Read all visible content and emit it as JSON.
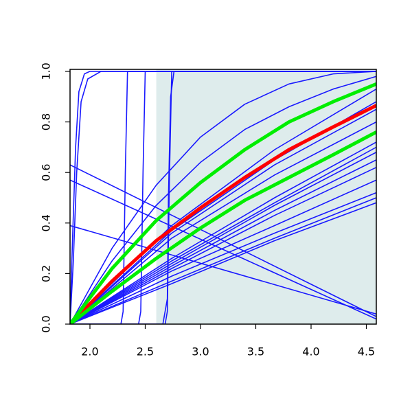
{
  "chart_data": {
    "type": "line",
    "xlim": [
      1.82,
      4.59
    ],
    "ylim": [
      0,
      1.008
    ],
    "xticks": [
      {
        "value": 2,
        "label": "2.0"
      },
      2.5,
      {
        "value": 3,
        "label": "3.0"
      },
      3.5,
      {
        "value": 4,
        "label": "4.0"
      },
      4.5
    ],
    "yticks": [
      {
        "value": 0,
        "label": "0.0"
      },
      0.2,
      0.4,
      0.6,
      0.8,
      {
        "value": 1,
        "label": "1.0"
      }
    ],
    "shade": {
      "from": 2.6,
      "color": "#deecec"
    },
    "series": [
      {
        "color": "#1a1aff",
        "width": 1.6,
        "x": [
          1.82,
          1.84,
          1.87,
          1.9,
          1.95,
          2.0,
          4.59
        ],
        "values": [
          0,
          0.3,
          0.7,
          0.92,
          0.99,
          1,
          1
        ]
      },
      {
        "color": "#1a1aff",
        "width": 1.6,
        "x": [
          1.82,
          1.85,
          1.88,
          1.92,
          1.98,
          2.1,
          4.59
        ],
        "values": [
          0,
          0.25,
          0.6,
          0.88,
          0.97,
          1,
          1
        ]
      },
      {
        "color": "#1a1aff",
        "width": 1.6,
        "x": [
          1.82,
          2.28,
          2.3,
          2.32,
          2.34,
          4.59
        ],
        "values": [
          0,
          0,
          0.05,
          0.6,
          1,
          1
        ]
      },
      {
        "color": "#1a1aff",
        "width": 1.6,
        "x": [
          1.82,
          2.44,
          2.46,
          2.48,
          2.5,
          4.59
        ],
        "values": [
          0,
          0,
          0.05,
          0.6,
          1,
          1
        ]
      },
      {
        "color": "#1a1aff",
        "width": 1.6,
        "x": [
          1.82,
          2.68,
          2.7,
          2.72,
          2.74,
          4.59
        ],
        "values": [
          0,
          0,
          0.05,
          0.6,
          1,
          1
        ]
      },
      {
        "color": "#1a1aff",
        "width": 1.6,
        "x": [
          1.82,
          2.66,
          2.7,
          2.71,
          2.73,
          2.76,
          4.59
        ],
        "values": [
          0,
          0,
          0.1,
          0.5,
          0.9,
          1,
          1
        ]
      },
      {
        "color": "#1a1aff",
        "width": 1.6,
        "x": [
          1.82,
          4.59
        ],
        "values": [
          0.63,
          0.03
        ]
      },
      {
        "color": "#1a1aff",
        "width": 1.6,
        "x": [
          1.82,
          4.59
        ],
        "values": [
          0.57,
          0.02
        ]
      },
      {
        "color": "#1a1aff",
        "width": 1.6,
        "x": [
          1.82,
          4.59
        ],
        "values": [
          0.39,
          0.04
        ]
      },
      {
        "color": "#1a1aff",
        "width": 1.6,
        "x": [
          1.82,
          2.2,
          2.6,
          3.0,
          3.4,
          3.8,
          4.2,
          4.59
        ],
        "values": [
          0,
          0.25,
          0.47,
          0.64,
          0.77,
          0.86,
          0.93,
          0.98
        ]
      },
      {
        "color": "#1a1aff",
        "width": 1.6,
        "x": [
          1.82,
          2.2,
          2.6,
          3.0,
          3.4,
          3.8,
          4.2,
          4.59
        ],
        "values": [
          0,
          0.3,
          0.55,
          0.74,
          0.87,
          0.95,
          0.99,
          1
        ]
      },
      {
        "color": "#1a1aff",
        "width": 1.6,
        "x": [
          1.82,
          2.74,
          3.67,
          4.59
        ],
        "values": [
          0,
          0.39,
          0.69,
          0.93
        ]
      },
      {
        "color": "#1a1aff",
        "width": 1.6,
        "x": [
          1.82,
          2.74,
          3.67,
          4.59
        ],
        "values": [
          0,
          0.37,
          0.65,
          0.88
        ]
      },
      {
        "color": "#1a1aff",
        "width": 1.6,
        "x": [
          1.82,
          2.74,
          3.67,
          4.59
        ],
        "values": [
          0,
          0.36,
          0.63,
          0.85
        ]
      },
      {
        "color": "#1a1aff",
        "width": 1.6,
        "x": [
          1.82,
          2.74,
          3.67,
          4.59
        ],
        "values": [
          0,
          0.34,
          0.59,
          0.8
        ]
      },
      {
        "color": "#1a1aff",
        "width": 1.6,
        "x": [
          1.82,
          2.74,
          3.67,
          4.59
        ],
        "values": [
          0,
          0.26,
          0.5,
          0.72
        ]
      },
      {
        "color": "#1a1aff",
        "width": 1.6,
        "x": [
          1.82,
          2.74,
          3.67,
          4.59
        ],
        "values": [
          0,
          0.25,
          0.48,
          0.7
        ]
      },
      {
        "color": "#1a1aff",
        "width": 1.6,
        "x": [
          1.82,
          2.74,
          3.67,
          4.59
        ],
        "values": [
          0,
          0.24,
          0.47,
          0.68
        ]
      },
      {
        "color": "#1a1aff",
        "width": 1.6,
        "x": [
          1.82,
          2.74,
          3.67,
          4.59
        ],
        "values": [
          0,
          0.23,
          0.45,
          0.65
        ]
      },
      {
        "color": "#1a1aff",
        "width": 1.6,
        "x": [
          1.82,
          2.74,
          3.67,
          4.59
        ],
        "values": [
          0,
          0.22,
          0.43,
          0.62
        ]
      },
      {
        "color": "#1a1aff",
        "width": 1.6,
        "x": [
          1.82,
          2.74,
          3.67,
          4.59
        ],
        "values": [
          0,
          0.21,
          0.39,
          0.57
        ]
      },
      {
        "color": "#1a1aff",
        "width": 1.6,
        "x": [
          1.82,
          2.74,
          3.67,
          4.59
        ],
        "values": [
          0,
          0.19,
          0.36,
          0.52
        ]
      },
      {
        "color": "#1a1aff",
        "width": 1.6,
        "x": [
          1.82,
          2.74,
          3.67,
          4.59
        ],
        "values": [
          0,
          0.17,
          0.34,
          0.5
        ]
      },
      {
        "color": "#1a1aff",
        "width": 1.6,
        "x": [
          1.82,
          2.74,
          3.67,
          4.59
        ],
        "values": [
          0,
          0.16,
          0.33,
          0.48
        ]
      },
      {
        "color": "#ff0000",
        "width": 5,
        "x": [
          1.82,
          2.2,
          2.6,
          3.0,
          3.4,
          3.8,
          4.2,
          4.59
        ],
        "values": [
          0,
          0.17,
          0.33,
          0.46,
          0.58,
          0.69,
          0.78,
          0.865
        ]
      },
      {
        "color": "#00ee00",
        "width": 5,
        "x": [
          1.82,
          2.2,
          2.6,
          3.0,
          3.4,
          3.8,
          4.2,
          4.59
        ],
        "values": [
          0,
          0.22,
          0.41,
          0.56,
          0.69,
          0.8,
          0.88,
          0.95
        ]
      },
      {
        "color": "#00ee00",
        "width": 5,
        "x": [
          1.82,
          2.2,
          2.6,
          3.0,
          3.4,
          3.8,
          4.2,
          4.59
        ],
        "values": [
          0,
          0.13,
          0.26,
          0.38,
          0.49,
          0.58,
          0.67,
          0.76
        ]
      }
    ]
  }
}
